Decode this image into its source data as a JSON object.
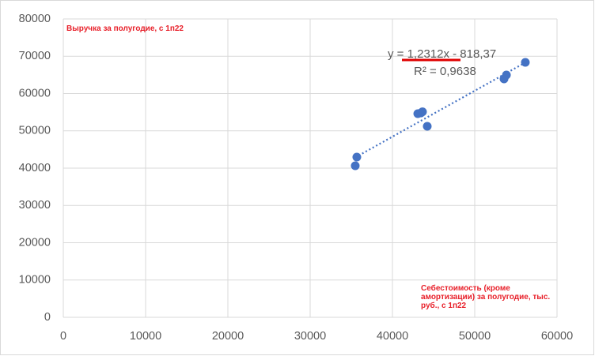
{
  "chart_data": {
    "type": "scatter",
    "y_title": "Выручка за полугодие, с 1п22",
    "x_title": "Себестоимость (кроме амортизации) за полугодие, тыс. руб., с 1п22",
    "x": [
      35480,
      35670,
      43080,
      43450,
      43650,
      44230,
      53560,
      53850,
      56150
    ],
    "values": [
      40630,
      42960,
      54600,
      54800,
      55100,
      51220,
      63920,
      64970,
      68360
    ],
    "color": "#4472c4",
    "xlim": [
      0,
      60000
    ],
    "xticks": [
      0,
      10000,
      20000,
      30000,
      40000,
      50000,
      60000
    ],
    "ylim": [
      0,
      80000
    ],
    "yticks": [
      0,
      10000,
      20000,
      30000,
      40000,
      50000,
      60000,
      70000,
      80000
    ],
    "grid": true,
    "trendline": {
      "equation": "y = 1,2312x - 818,37",
      "r2": "R² = 0,9638",
      "slope": 1.2312,
      "intercept": -818.37
    }
  }
}
